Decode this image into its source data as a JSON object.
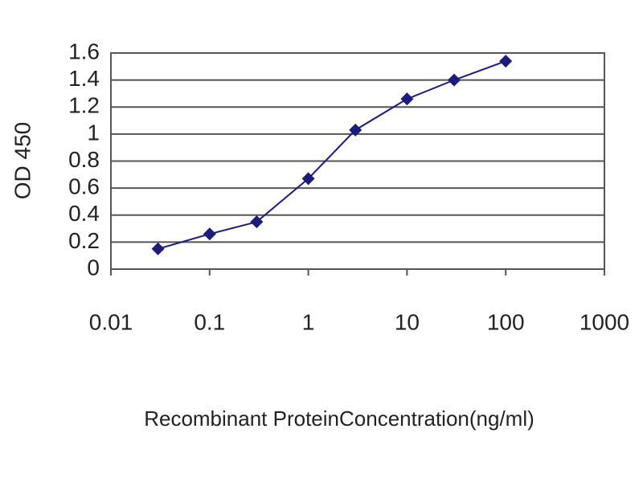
{
  "chart_data": {
    "type": "line",
    "y_label": "OD 450",
    "x_label": "Recombinant ProteinConcentration(ng/ml)",
    "x": [
      0.03,
      0.1,
      0.3,
      1,
      3,
      10,
      30,
      100
    ],
    "values": [
      0.15,
      0.26,
      0.35,
      0.67,
      1.03,
      1.26,
      1.4,
      1.54
    ],
    "color": "#1c1c7a",
    "xscale": "log",
    "xlim": [
      0.01,
      1000
    ],
    "xticks": [
      0.01,
      0.1,
      1,
      10,
      100,
      1000
    ],
    "ylim": [
      0,
      1.6
    ],
    "yticks": [
      0,
      0.2,
      0.4,
      0.6,
      0.8,
      1,
      1.2,
      1.4,
      1.6
    ],
    "grid": true
  }
}
